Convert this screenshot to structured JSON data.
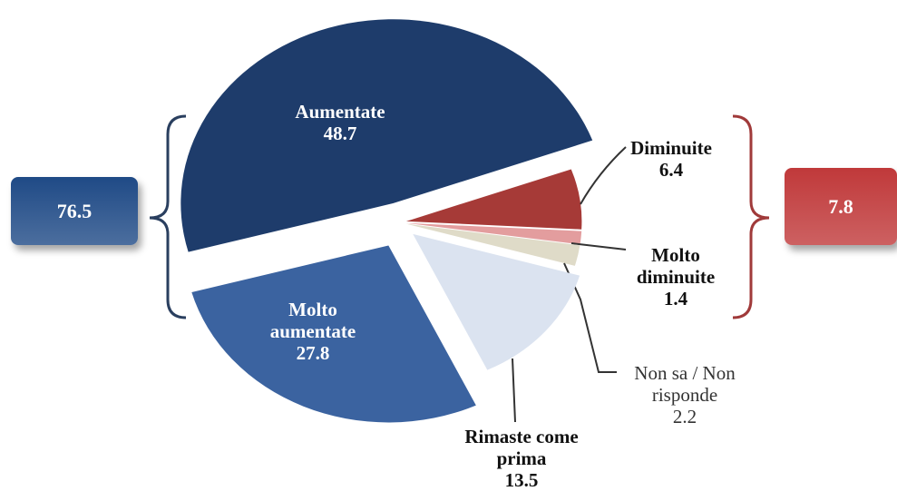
{
  "chart_data": {
    "type": "pie",
    "categories": [
      "Diminuite",
      "Molto diminuite",
      "Non sa / Non risponde",
      "Rimaste come prima",
      "Molto aumentate",
      "Aumentate"
    ],
    "values": [
      6.4,
      1.4,
      2.2,
      13.5,
      27.8,
      48.7
    ],
    "colors": [
      "#a63a37",
      "#e39d9e",
      "#dfdbc8",
      "#dbe3f0",
      "#3b63a0",
      "#1e3c6b"
    ],
    "totals": [
      {
        "value": 76.5,
        "color": "#1f4a86"
      },
      {
        "value": 7.8,
        "color": "#c0393a"
      }
    ]
  }
}
